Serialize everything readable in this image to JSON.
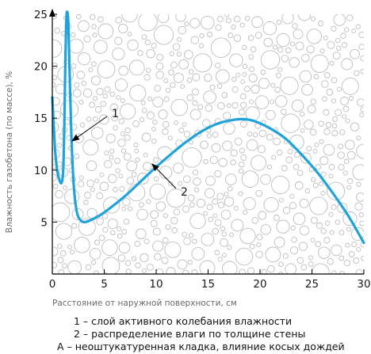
{
  "chart_data": {
    "type": "line",
    "xlabel": "Расстояние от наружной поверхности, см",
    "ylabel": "Влажность газобетона (по массе), %",
    "xlim": [
      0,
      30
    ],
    "ylim": [
      0,
      25
    ],
    "x_ticks": [
      0,
      5,
      10,
      15,
      20,
      25,
      30
    ],
    "y_ticks": [
      5,
      10,
      15,
      20,
      25
    ],
    "grid": false,
    "series": [
      {
        "color": "#1fa3d9",
        "points": [
          [
            0.0,
            17.0
          ],
          [
            0.15,
            14.0
          ],
          [
            0.3,
            11.5
          ],
          [
            0.5,
            9.8
          ],
          [
            0.7,
            9.0
          ],
          [
            0.9,
            8.8
          ],
          [
            1.05,
            10.0
          ],
          [
            1.15,
            14.0
          ],
          [
            1.25,
            20.0
          ],
          [
            1.35,
            24.5
          ],
          [
            1.45,
            25.2
          ],
          [
            1.55,
            24.0
          ],
          [
            1.65,
            20.0
          ],
          [
            1.8,
            14.5
          ],
          [
            1.95,
            10.5
          ],
          [
            2.15,
            7.5
          ],
          [
            2.4,
            5.8
          ],
          [
            2.7,
            5.2
          ],
          [
            3.0,
            5.0
          ],
          [
            3.5,
            5.1
          ],
          [
            4.5,
            5.6
          ],
          [
            5.5,
            6.3
          ],
          [
            7.0,
            7.5
          ],
          [
            8.5,
            8.9
          ],
          [
            10.0,
            10.3
          ],
          [
            11.5,
            11.6
          ],
          [
            13.0,
            12.8
          ],
          [
            14.5,
            13.8
          ],
          [
            16.0,
            14.5
          ],
          [
            17.5,
            14.85
          ],
          [
            18.5,
            14.9
          ],
          [
            19.5,
            14.7
          ],
          [
            21.0,
            14.0
          ],
          [
            22.5,
            13.0
          ],
          [
            24.0,
            11.5
          ],
          [
            25.5,
            9.8
          ],
          [
            27.0,
            7.8
          ],
          [
            28.5,
            5.6
          ],
          [
            30.0,
            3.0
          ]
        ]
      }
    ],
    "annotations": [
      {
        "text": "1",
        "arrow_to": [
          1.9,
          12.8
        ]
      },
      {
        "text": "2",
        "arrow_to": [
          9.6,
          10.6
        ]
      }
    ]
  },
  "legend_lines": [
    "1 – слой активного колебания влажности",
    "2 – распределение влаги по толщине стены",
    "А – неоштукатуренная кладка, влияние косых дождей"
  ]
}
